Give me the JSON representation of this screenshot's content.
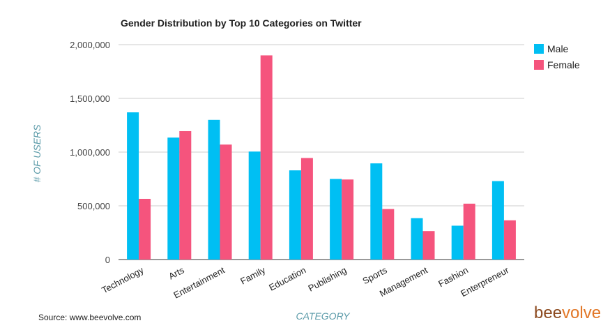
{
  "chart_data": {
    "type": "bar",
    "title": "Gender Distribution by Top 10 Categories on Twitter",
    "xlabel": "CATEGORY",
    "ylabel": "# OF USERS",
    "ylim": [
      0,
      2000000
    ],
    "yticks": [
      "0",
      "500,000",
      "1,000,000",
      "1,500,000",
      "2,000,000"
    ],
    "ytick_values": [
      0,
      500000,
      1000000,
      1500000,
      2000000
    ],
    "grid": true,
    "legend_position": "top-right",
    "categories": [
      "Technology",
      "Arts",
      "Entertainment",
      "Family",
      "Education",
      "Publishing",
      "Sports",
      "Management",
      "Fashion",
      "Enterpreneur"
    ],
    "series": [
      {
        "name": "Male",
        "color": "#00bff3",
        "values": [
          1370000,
          1135000,
          1300000,
          1005000,
          830000,
          750000,
          895000,
          385000,
          315000,
          730000
        ]
      },
      {
        "name": "Female",
        "color": "#f5547d",
        "values": [
          565000,
          1195000,
          1070000,
          1900000,
          945000,
          745000,
          470000,
          265000,
          520000,
          365000
        ]
      }
    ]
  },
  "source": "Source: www.beevolve.com",
  "logo": {
    "part1": "bee",
    "part2": "volve",
    "color1": "#8c4a1f",
    "color2": "#e27727"
  },
  "colors": {
    "axis_title": "#5a9aa8",
    "grid": "#cccccc"
  }
}
